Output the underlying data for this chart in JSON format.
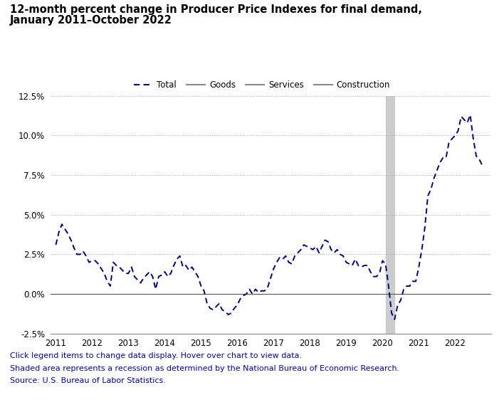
{
  "title_line1": "12-month percent change in Producer Price Indexes for final demand,",
  "title_line2": "January 2011–October 2022",
  "title_color": "#000000",
  "title_fontsize": 10.5,
  "footnote1": "Click legend items to change data display. Hover over chart to view data.",
  "footnote2": "Shaded area represents a recession as determined by the National Bureau of Economic Research.",
  "footnote3": "Source: U.S. Bureau of Labor Statistics.",
  "footnote_color": "#0000CC",
  "footnote_fontsize": 8.0,
  "ylim": [
    -2.5,
    12.5
  ],
  "yticks": [
    -2.5,
    0.0,
    2.5,
    5.0,
    7.5,
    10.0,
    12.5
  ],
  "ytick_labels": [
    "-2.5%",
    "0.0%",
    "2.5%",
    "5.0%",
    "7.5%",
    "10.0%",
    "12.5%"
  ],
  "xtick_years": [
    2011,
    2012,
    2013,
    2014,
    2015,
    2016,
    2017,
    2018,
    2019,
    2020,
    2021,
    2022
  ],
  "recession_color": "#cccccc",
  "line_color": "#00008B",
  "grid_color": "#aaaaaa",
  "zero_line_color": "#555555",
  "background_color": "#ffffff",
  "ppi_total": [
    3.1,
    3.9,
    4.4,
    4.1,
    3.8,
    3.4,
    2.9,
    2.5,
    2.5,
    2.7,
    2.4,
    2.0,
    2.1,
    2.1,
    1.9,
    1.6,
    1.3,
    0.8,
    0.5,
    2.0,
    1.8,
    1.7,
    1.5,
    1.3,
    1.3,
    1.7,
    1.1,
    0.9,
    0.7,
    1.0,
    1.2,
    1.4,
    1.1,
    0.3,
    1.1,
    1.2,
    1.4,
    1.1,
    1.3,
    1.8,
    2.2,
    2.4,
    1.7,
    1.8,
    1.5,
    1.7,
    1.4,
    1.1,
    0.5,
    0.2,
    -0.6,
    -0.9,
    -1.0,
    -0.8,
    -0.6,
    -1.0,
    -1.1,
    -1.3,
    -1.2,
    -0.9,
    -0.7,
    -0.3,
    -0.1,
    0.0,
    0.3,
    0.0,
    0.3,
    0.1,
    0.2,
    0.2,
    0.4,
    1.0,
    1.6,
    2.0,
    2.3,
    2.2,
    2.4,
    2.0,
    1.9,
    2.4,
    2.6,
    2.8,
    3.1,
    3.0,
    2.9,
    2.8,
    3.0,
    2.6,
    3.0,
    3.4,
    3.3,
    2.8,
    2.6,
    2.8,
    2.5,
    2.4,
    2.0,
    1.9,
    1.8,
    2.2,
    1.8,
    1.7,
    1.8,
    1.8,
    1.4,
    1.1,
    1.1,
    1.3,
    2.1,
    1.9,
    0.5,
    -1.2,
    -1.6,
    -0.7,
    -0.4,
    0.3,
    0.5,
    0.5,
    0.8,
    0.8,
    1.7,
    2.8,
    4.2,
    6.2,
    6.6,
    7.3,
    7.8,
    8.3,
    8.6,
    8.6,
    9.6,
    9.8,
    10.0,
    10.3,
    11.2,
    11.0,
    10.8,
    11.3,
    9.8,
    8.7,
    8.5,
    8.1
  ]
}
